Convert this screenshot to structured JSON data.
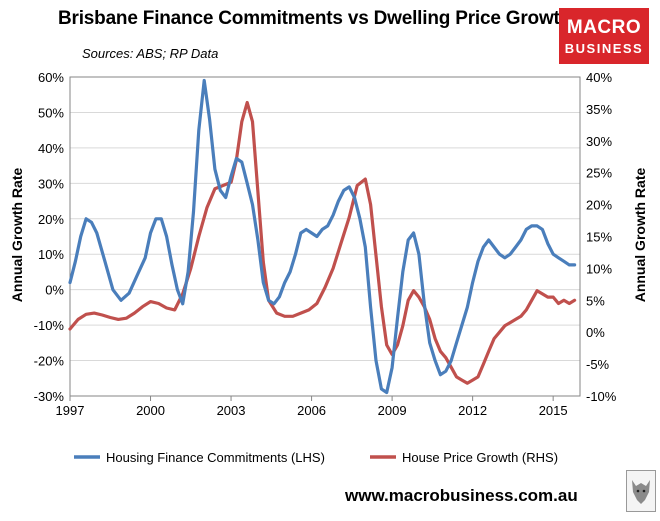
{
  "header": {
    "title": "Brisbane Finance Commitments vs Dwelling Price Growth",
    "sources": "Sources: ABS; RP Data"
  },
  "logo": {
    "line1": "MACRO",
    "line2": "BUSINESS",
    "color": "#d9262b"
  },
  "footer": {
    "url": "www.macrobusiness.com.au"
  },
  "chart_data": {
    "type": "line",
    "x_ticks": [
      "1997",
      "2000",
      "2003",
      "2006",
      "2009",
      "2012",
      "2015"
    ],
    "x_tick_values": [
      1997,
      2000,
      2003,
      2006,
      2009,
      2012,
      2015
    ],
    "xlim": [
      1997,
      2016
    ],
    "ylabel_left": "Annual Growth Rate",
    "ylabel_right": "Annual Growth Rate",
    "ylim_left": [
      -30,
      60
    ],
    "ylim_right": [
      -10,
      40
    ],
    "yticks_left": [
      "60%",
      "50%",
      "40%",
      "30%",
      "20%",
      "10%",
      "0%",
      "-10%",
      "-20%",
      "-30%"
    ],
    "yticks_left_values": [
      60,
      50,
      40,
      30,
      20,
      10,
      0,
      -10,
      -20,
      -30
    ],
    "yticks_right": [
      "40%",
      "35%",
      "30%",
      "25%",
      "20%",
      "15%",
      "10%",
      "5%",
      "0%",
      "-5%",
      "-10%"
    ],
    "yticks_right_values": [
      40,
      35,
      30,
      25,
      20,
      15,
      10,
      5,
      0,
      -5,
      -10
    ],
    "legend_position": "bottom",
    "series": [
      {
        "name": "Housing Finance Commitments (LHS)",
        "axis": "left",
        "color": "#4a7ebb",
        "x": [
          1997.0,
          1997.2,
          1997.4,
          1997.6,
          1997.8,
          1998.0,
          1998.3,
          1998.6,
          1998.9,
          1999.2,
          1999.5,
          1999.8,
          2000.0,
          2000.2,
          2000.4,
          2000.6,
          2000.8,
          2001.0,
          2001.2,
          2001.4,
          2001.6,
          2001.8,
          2002.0,
          2002.2,
          2002.4,
          2002.6,
          2002.8,
          2003.0,
          2003.2,
          2003.4,
          2003.6,
          2003.8,
          2004.0,
          2004.2,
          2004.4,
          2004.6,
          2004.8,
          2005.0,
          2005.2,
          2005.4,
          2005.6,
          2005.8,
          2006.0,
          2006.2,
          2006.4,
          2006.6,
          2006.8,
          2007.0,
          2007.2,
          2007.4,
          2007.6,
          2007.8,
          2008.0,
          2008.2,
          2008.4,
          2008.6,
          2008.8,
          2009.0,
          2009.2,
          2009.4,
          2009.6,
          2009.8,
          2010.0,
          2010.2,
          2010.4,
          2010.6,
          2010.8,
          2011.0,
          2011.2,
          2011.4,
          2011.6,
          2011.8,
          2012.0,
          2012.2,
          2012.4,
          2012.6,
          2012.8,
          2013.0,
          2013.2,
          2013.4,
          2013.6,
          2013.8,
          2014.0,
          2014.2,
          2014.4,
          2014.6,
          2014.8,
          2015.0,
          2015.2,
          2015.4,
          2015.6,
          2015.8
        ],
        "values": [
          2,
          8,
          15,
          20,
          19,
          16,
          8,
          0,
          -3,
          -1,
          4,
          9,
          16,
          20,
          20,
          15,
          7,
          0,
          -4,
          5,
          22,
          45,
          59,
          48,
          34,
          28,
          26,
          32,
          37,
          36,
          30,
          24,
          14,
          2,
          -3,
          -4,
          -2,
          2,
          5,
          10,
          16,
          17,
          16,
          15,
          17,
          18,
          21,
          25,
          28,
          29,
          26,
          20,
          12,
          -5,
          -20,
          -28,
          -29,
          -22,
          -8,
          5,
          14,
          16,
          10,
          -4,
          -15,
          -20,
          -24,
          -23,
          -20,
          -15,
          -10,
          -5,
          2,
          8,
          12,
          14,
          12,
          10,
          9,
          10,
          12,
          14,
          17,
          18,
          18,
          17,
          13,
          10,
          9,
          8,
          7,
          7
        ]
      },
      {
        "name": "House Price Growth (RHS)",
        "axis": "right",
        "color": "#c0504d",
        "x": [
          1997.0,
          1997.3,
          1997.6,
          1997.9,
          1998.2,
          1998.5,
          1998.8,
          1999.1,
          1999.4,
          1999.7,
          2000.0,
          2000.3,
          2000.6,
          2000.9,
          2001.2,
          2001.5,
          2001.8,
          2002.1,
          2002.4,
          2002.7,
          2003.0,
          2003.2,
          2003.4,
          2003.6,
          2003.8,
          2004.0,
          2004.2,
          2004.4,
          2004.7,
          2005.0,
          2005.3,
          2005.6,
          2005.9,
          2006.2,
          2006.5,
          2006.8,
          2007.1,
          2007.4,
          2007.7,
          2008.0,
          2008.2,
          2008.4,
          2008.6,
          2008.8,
          2009.0,
          2009.2,
          2009.4,
          2009.6,
          2009.8,
          2010.0,
          2010.2,
          2010.4,
          2010.6,
          2010.8,
          2011.0,
          2011.2,
          2011.4,
          2011.6,
          2011.8,
          2012.0,
          2012.2,
          2012.4,
          2012.6,
          2012.8,
          2013.0,
          2013.2,
          2013.4,
          2013.6,
          2013.8,
          2014.0,
          2014.2,
          2014.4,
          2014.6,
          2014.8,
          2015.0,
          2015.2,
          2015.4,
          2015.6,
          2015.8
        ],
        "values": [
          0.5,
          2,
          2.8,
          3,
          2.7,
          2.3,
          2,
          2.2,
          3,
          4,
          4.8,
          4.5,
          3.8,
          3.5,
          6,
          10,
          15,
          19.5,
          22.5,
          23,
          23.5,
          27,
          33,
          36,
          33,
          22,
          11,
          5,
          3,
          2.5,
          2.5,
          3,
          3.5,
          4.5,
          7,
          10,
          14,
          18,
          23,
          24,
          20,
          12,
          4,
          -2,
          -3.5,
          -2,
          1,
          5,
          6.5,
          5.5,
          4,
          2,
          -1,
          -3,
          -4,
          -5.5,
          -7,
          -7.5,
          -8,
          -7.5,
          -7,
          -5,
          -3,
          -1,
          0,
          1,
          1.5,
          2,
          2.5,
          3.5,
          5,
          6.5,
          6,
          5.5,
          5.5,
          4.5,
          5,
          4.5,
          5
        ]
      }
    ]
  }
}
